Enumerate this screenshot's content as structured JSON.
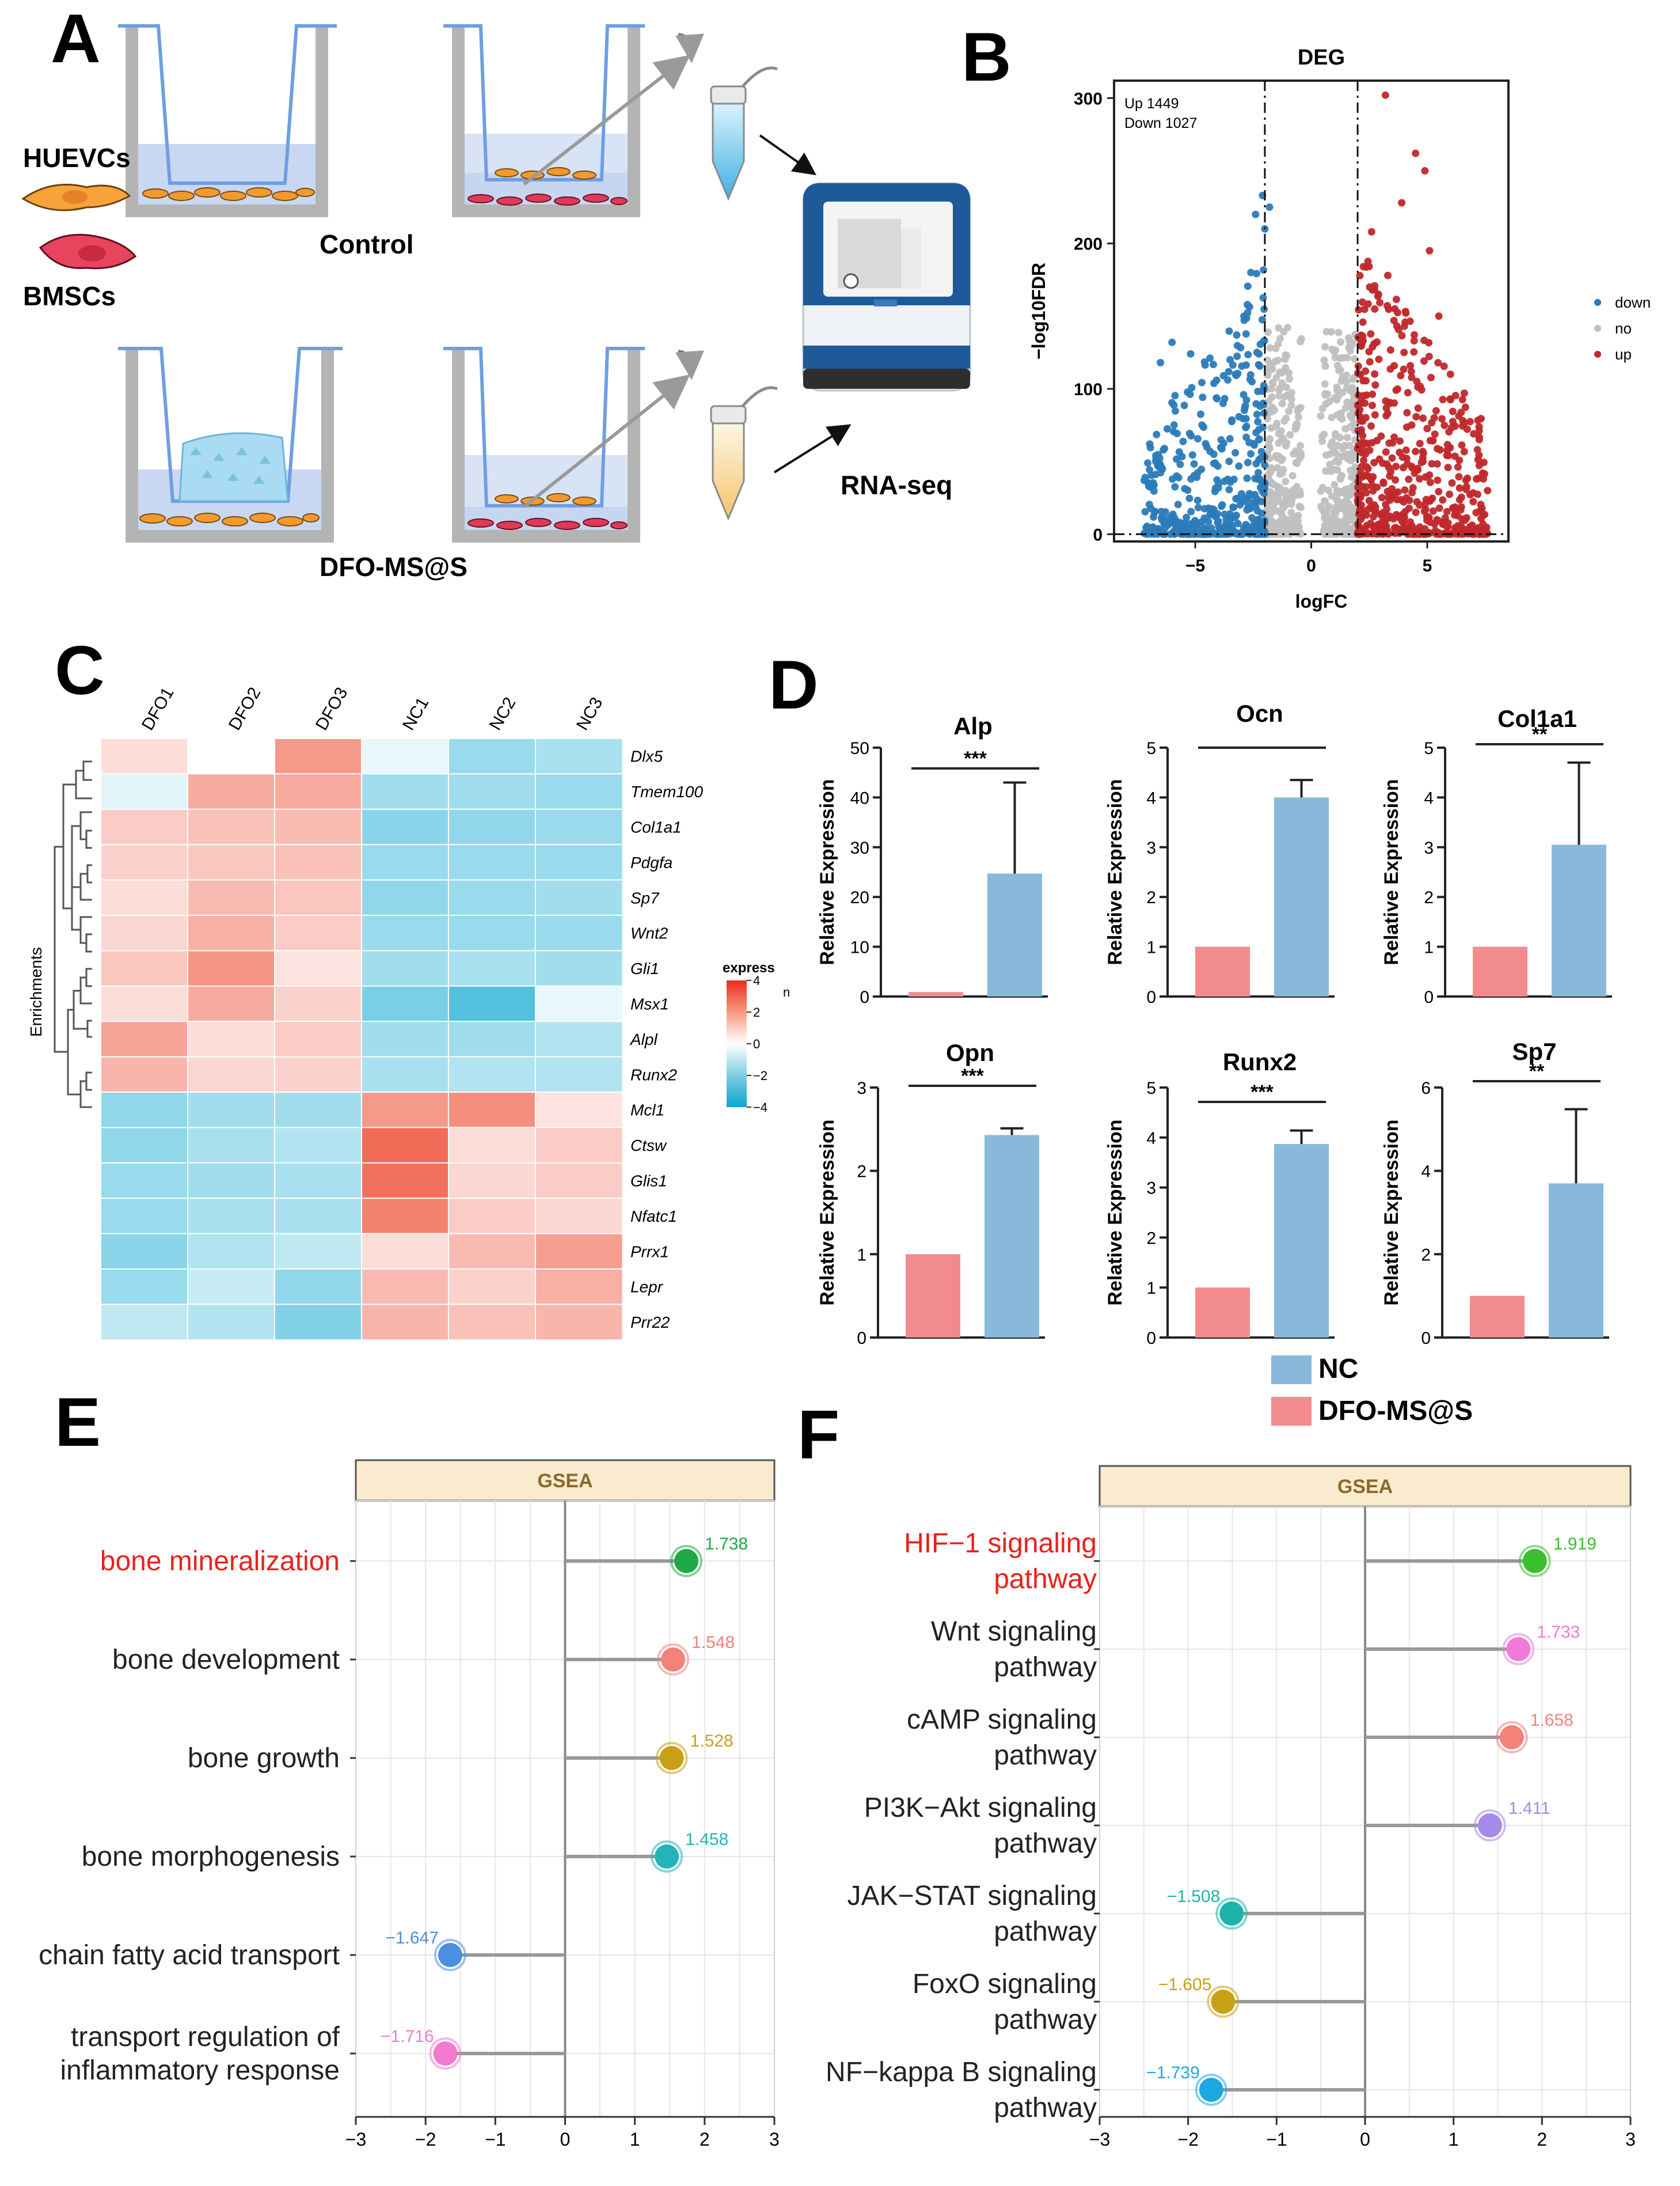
{
  "panel_labels": {
    "a": "A",
    "b": "B",
    "c": "C",
    "d": "D",
    "e": "E",
    "f": "F"
  },
  "panel_a": {
    "huevcs": "HUEVCs",
    "bmscs": "BMSCs",
    "control": "Control",
    "dfo": "DFO-MS@S",
    "rnaseq": "RNA-seq"
  },
  "colors": {
    "down": "#2b7bb9",
    "no": "#c0c0c0",
    "up": "#c0282b",
    "nc_bar": "#88b9da",
    "dfo_bar": "#f28b8d",
    "gsea_header": "#faebcf",
    "highlight_text": "#e8211b"
  },
  "chart_data": [
    {
      "id": "B",
      "type": "scatter",
      "title": "DEG",
      "xlabel": "logFC",
      "ylabel": "−log10FDR",
      "xlim": [
        -8.5,
        8.5
      ],
      "ylim": [
        -5,
        312
      ],
      "xticks": [
        {
          "v": -5,
          "t": "−5"
        },
        {
          "v": 0,
          "t": "0"
        },
        {
          "v": 5,
          "t": "5"
        }
      ],
      "yticks": [
        {
          "v": 0,
          "t": "0"
        },
        {
          "v": 100,
          "t": "100"
        },
        {
          "v": 200,
          "t": "200"
        },
        {
          "v": 300,
          "t": "300"
        }
      ],
      "thresholds": {
        "logfc": [
          -2,
          2
        ],
        "fdr": 0
      },
      "annotation_up": "Up   1449",
      "annotation_down": "Down 1027",
      "legend": [
        {
          "key": "down",
          "label": "down"
        },
        {
          "key": "no",
          "label": "no"
        },
        {
          "key": "up",
          "label": "up"
        }
      ],
      "highlight_points": {
        "down": [
          [
            -2.1,
            233
          ],
          [
            -1.8,
            225
          ],
          [
            -2.4,
            220
          ],
          [
            -2.0,
            210
          ],
          [
            -6.0,
            132
          ],
          [
            -5.2,
            124
          ],
          [
            -6.5,
            118
          ],
          [
            -3.5,
            120
          ],
          [
            -2.9,
            150
          ],
          [
            -2.6,
            180
          ],
          [
            -4.2,
            55
          ],
          [
            -4.5,
            60
          ],
          [
            -3.8,
            90
          ],
          [
            -5.8,
            40
          ],
          [
            -7.2,
            37
          ],
          [
            -6.7,
            50
          ]
        ],
        "up": [
          [
            3.2,
            302
          ],
          [
            4.5,
            262
          ],
          [
            4.9,
            250
          ],
          [
            5.1,
            195
          ],
          [
            3.9,
            228
          ],
          [
            3.3,
            178
          ],
          [
            2.6,
            208
          ],
          [
            2.9,
            165
          ],
          [
            3.6,
            155
          ],
          [
            5.5,
            150
          ],
          [
            6.0,
            110
          ],
          [
            6.6,
            97
          ],
          [
            7.0,
            69
          ],
          [
            7.6,
            30
          ],
          [
            4.0,
            125
          ],
          [
            5.3,
            80
          ]
        ]
      },
      "note": "Additional dense point clouds are generated procedurally: down |logFC|>2 FDR>0, not-significant band between -2 and 2 (bimodal), up logFC>2."
    },
    {
      "id": "C",
      "type": "heatmap",
      "columns": [
        "DFO1",
        "DFO2",
        "DFO3",
        "NC1",
        "NC2",
        "NC3"
      ],
      "rows": [
        "Dlx5",
        "Tmem100",
        "Col1a1",
        "Pdgfa",
        "Sp7",
        "Wnt2",
        "Gli1",
        "Msx1",
        "Alpl",
        "Runx2",
        "Mcl1",
        "Ctsw",
        "Glis1",
        "Nfatc1",
        "Prrx1",
        "Lepr",
        "Prr22"
      ],
      "values": [
        [
          0.6,
          0.0,
          1.8,
          -0.3,
          -1.3,
          -1.1
        ],
        [
          -0.4,
          1.5,
          1.5,
          -1.2,
          -1.2,
          -1.3
        ],
        [
          0.9,
          1.1,
          1.2,
          -1.5,
          -1.4,
          -1.3
        ],
        [
          0.8,
          1.0,
          1.1,
          -1.3,
          -1.3,
          -1.3
        ],
        [
          0.6,
          1.2,
          1.0,
          -1.4,
          -1.3,
          -1.2
        ],
        [
          0.7,
          1.4,
          0.9,
          -1.3,
          -1.3,
          -1.3
        ],
        [
          1.0,
          1.9,
          0.5,
          -1.2,
          -1.1,
          -1.2
        ],
        [
          0.6,
          1.5,
          0.8,
          -1.7,
          -2.2,
          -0.3
        ],
        [
          1.6,
          0.6,
          0.9,
          -1.2,
          -1.2,
          -1.0
        ],
        [
          1.3,
          0.7,
          0.8,
          -1.1,
          -1.0,
          -1.0
        ],
        [
          -1.4,
          -1.2,
          -1.2,
          1.8,
          2.0,
          0.5
        ],
        [
          -1.4,
          -1.1,
          -1.0,
          2.6,
          0.6,
          0.9
        ],
        [
          -1.3,
          -1.2,
          -1.1,
          2.5,
          0.7,
          0.9
        ],
        [
          -1.3,
          -1.1,
          -1.1,
          2.2,
          0.9,
          0.7
        ],
        [
          -1.5,
          -1.0,
          -0.8,
          0.6,
          1.2,
          1.7
        ],
        [
          -1.3,
          -0.7,
          -1.4,
          1.2,
          0.8,
          1.4
        ],
        [
          -0.8,
          -1.0,
          -1.6,
          1.3,
          1.1,
          1.3
        ]
      ],
      "legend_title": "express",
      "legend_ticks": [
        {
          "v": 4,
          "t": "4"
        },
        {
          "v": 2,
          "t": "2"
        },
        {
          "v": 0,
          "t": "0"
        },
        {
          "v": -2,
          "t": "−2"
        },
        {
          "v": -4,
          "t": "−4"
        }
      ],
      "legend_extra": "n",
      "row_label": "Enrichments"
    },
    {
      "id": "D",
      "type": "bar",
      "series_legend": [
        {
          "key": "nc",
          "label": "NC"
        },
        {
          "key": "dfo",
          "label": "DFO-MS@S"
        }
      ],
      "ylabel": "Relative Expression",
      "plots": [
        {
          "title": "Alp",
          "dfo": 0.9,
          "nc": 24.7,
          "err": 18.3,
          "ylim": [
            0,
            50
          ],
          "yticks": [
            0,
            10,
            20,
            30,
            40,
            50
          ],
          "sig": "***"
        },
        {
          "title": "Ocn",
          "dfo": 1.0,
          "nc": 4.0,
          "err": 0.35,
          "ylim": [
            0,
            5
          ],
          "yticks": [
            0,
            1,
            2,
            3,
            4,
            5
          ],
          "sig": ""
        },
        {
          "title": "Col1a1",
          "dfo": 1.0,
          "nc": 3.05,
          "err": 1.65,
          "ylim": [
            0,
            5
          ],
          "yticks": [
            0,
            1,
            2,
            3,
            4,
            5
          ],
          "sig": "**"
        },
        {
          "title": "Opn",
          "dfo": 1.0,
          "nc": 2.43,
          "err": 0.08,
          "ylim": [
            0,
            3
          ],
          "yticks": [
            0,
            1,
            2,
            3
          ],
          "sig": "***"
        },
        {
          "title": "Runx2",
          "dfo": 1.0,
          "nc": 3.87,
          "err": 0.27,
          "ylim": [
            0,
            5
          ],
          "yticks": [
            0,
            1,
            2,
            3,
            4,
            5
          ],
          "sig": "***"
        },
        {
          "title": "Sp7",
          "dfo": 1.0,
          "nc": 3.7,
          "err": 1.78,
          "ylim": [
            0,
            6
          ],
          "yticks": [
            0,
            2,
            4,
            6
          ],
          "sig": "**"
        }
      ]
    },
    {
      "id": "E",
      "type": "scatter",
      "subtype": "lollipop",
      "header": "GSEA",
      "xlim": [
        -3,
        3
      ],
      "xticks": [
        {
          "v": -3,
          "t": "−3"
        },
        {
          "v": -2,
          "t": "−2"
        },
        {
          "v": -1,
          "t": "−1"
        },
        {
          "v": 0,
          "t": "0"
        },
        {
          "v": 1,
          "t": "1"
        },
        {
          "v": 2,
          "t": "2"
        },
        {
          "v": 3,
          "t": "3"
        }
      ],
      "items": [
        {
          "label": [
            "bone mineralization"
          ],
          "value": 1.738,
          "text": "1.738",
          "color": "#1fa846",
          "highlight": true
        },
        {
          "label": [
            "bone development"
          ],
          "value": 1.548,
          "text": "1.548",
          "color": "#f2827a",
          "highlight": false
        },
        {
          "label": [
            "bone growth"
          ],
          "value": 1.528,
          "text": "1.528",
          "color": "#c8a018",
          "highlight": false
        },
        {
          "label": [
            "bone morphogenesis"
          ],
          "value": 1.458,
          "text": "1.458",
          "color": "#22b4b8",
          "highlight": false
        },
        {
          "label": [
            "chain fatty acid transport"
          ],
          "value": -1.647,
          "text": "−1.647",
          "color": "#4a8fe0",
          "highlight": false
        },
        {
          "label": [
            "transport regulation of",
            "inflammatory response"
          ],
          "value": -1.716,
          "text": "−1.716",
          "color": "#f27ad0",
          "highlight": false
        }
      ]
    },
    {
      "id": "F",
      "type": "scatter",
      "subtype": "lollipop",
      "header": "GSEA",
      "xlim": [
        -3,
        3
      ],
      "xticks": [
        {
          "v": -3,
          "t": "−3"
        },
        {
          "v": -2,
          "t": "−2"
        },
        {
          "v": -1,
          "t": "−1"
        },
        {
          "v": 0,
          "t": "0"
        },
        {
          "v": 1,
          "t": "1"
        },
        {
          "v": 2,
          "t": "2"
        },
        {
          "v": 3,
          "t": "3"
        }
      ],
      "items": [
        {
          "label": [
            "HIF−1 signaling",
            "pathway"
          ],
          "value": 1.919,
          "text": "1.919",
          "color": "#3cbf2e",
          "highlight": true
        },
        {
          "label": [
            "Wnt signaling",
            "pathway"
          ],
          "value": 1.733,
          "text": "1.733",
          "color": "#f07ad8",
          "highlight": false
        },
        {
          "label": [
            "cAMP signaling",
            "pathway"
          ],
          "value": 1.658,
          "text": "1.658",
          "color": "#f2827a",
          "highlight": false
        },
        {
          "label": [
            "PI3K−Akt signaling",
            "pathway"
          ],
          "value": 1.411,
          "text": "1.411",
          "color": "#a58ae8",
          "highlight": false
        },
        {
          "label": [
            "JAK−STAT signaling",
            "pathway"
          ],
          "value": -1.508,
          "text": "−1.508",
          "color": "#1cb4a8",
          "highlight": false
        },
        {
          "label": [
            "FoxO signaling",
            "pathway"
          ],
          "value": -1.605,
          "text": "−1.605",
          "color": "#c8a018",
          "highlight": false
        },
        {
          "label": [
            "NF−kappa B signaling",
            "pathway"
          ],
          "value": -1.739,
          "text": "−1.739",
          "color": "#1ea8e0",
          "highlight": false
        }
      ]
    }
  ]
}
